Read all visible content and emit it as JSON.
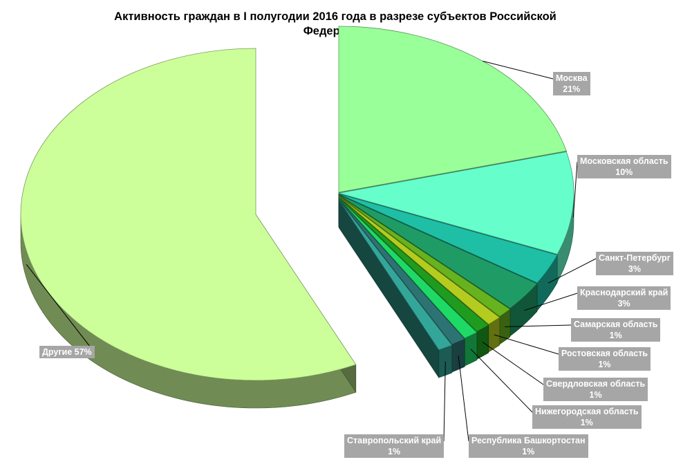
{
  "chart_data": {
    "type": "pie",
    "title": "Активность граждан в I полугодии 2016 года в разрезе субъектов Российской Федерации",
    "slices": [
      {
        "name": "Москва",
        "value": 21,
        "value_label": "21%",
        "color": "#99ff99"
      },
      {
        "name": "Московская область",
        "value": 10,
        "value_label": "10%",
        "color": "#66ffcc"
      },
      {
        "name": "Санкт-Петербург",
        "value": 3,
        "value_label": "3%",
        "color": "#1fbfa6"
      },
      {
        "name": "Краснодарский край",
        "value": 3,
        "value_label": "3%",
        "color": "#1f9c66"
      },
      {
        "name": "Самарская область",
        "value": 1,
        "value_label": "1%",
        "color": "#66b31f"
      },
      {
        "name": "Ростовская область",
        "value": 1,
        "value_label": "1%",
        "color": "#b3cc1f"
      },
      {
        "name": "Свердловская область",
        "value": 1,
        "value_label": "1%",
        "color": "#1f9c1f"
      },
      {
        "name": "Нижегородская область",
        "value": 1,
        "value_label": "1%",
        "color": "#1fd966"
      },
      {
        "name": "Республика Башкортостан",
        "value": 1,
        "value_label": "1%",
        "color": "#2e7373"
      },
      {
        "name": "Ставропольский край",
        "value": 1,
        "value_label": "1%",
        "color": "#33a699"
      },
      {
        "name": "Другие",
        "value": 57,
        "value_label": "57%",
        "color": "#ccff99"
      }
    ]
  }
}
